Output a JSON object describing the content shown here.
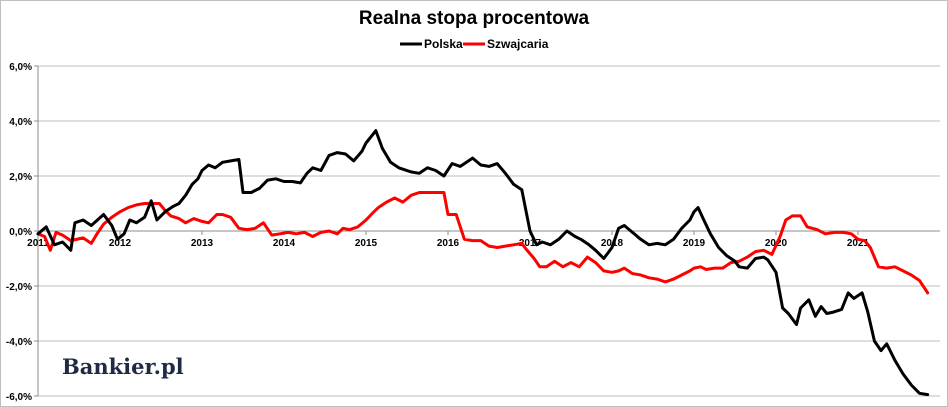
{
  "chart_data": {
    "type": "line",
    "title": "Realna stopa procentowa",
    "xlabel": "",
    "ylabel": "",
    "x_tick_labels": [
      "2011",
      "2012",
      "2013",
      "2014",
      "2015",
      "2016",
      "2017",
      "2018",
      "2019",
      "2020",
      "2021"
    ],
    "y_tick_labels": [
      "6,0%",
      "4,0%",
      "2,0%",
      "0,0%",
      "-2,0%",
      "-4,0%",
      "-6,0%"
    ],
    "y_tick_values": [
      6,
      4,
      2,
      0,
      -2,
      -4,
      -6
    ],
    "ylim": [
      -6,
      6
    ],
    "xlim": [
      2011.0,
      2022.0
    ],
    "grid": "horizontal",
    "legend_position": "top-center",
    "logo_text": "Bankier.pl",
    "series": [
      {
        "name": "Polska",
        "color": "#000000",
        "points": [
          [
            2011.0,
            -0.1
          ],
          [
            2011.1,
            0.15
          ],
          [
            2011.2,
            -0.5
          ],
          [
            2011.3,
            -0.4
          ],
          [
            2011.4,
            -0.7
          ],
          [
            2011.45,
            0.3
          ],
          [
            2011.55,
            0.4
          ],
          [
            2011.65,
            0.2
          ],
          [
            2011.8,
            0.6
          ],
          [
            2011.9,
            0.2
          ],
          [
            2011.97,
            -0.3
          ],
          [
            2012.05,
            -0.1
          ],
          [
            2012.12,
            0.4
          ],
          [
            2012.2,
            0.3
          ],
          [
            2012.3,
            0.5
          ],
          [
            2012.38,
            1.1
          ],
          [
            2012.45,
            0.4
          ],
          [
            2012.55,
            0.7
          ],
          [
            2012.65,
            0.9
          ],
          [
            2012.72,
            1.0
          ],
          [
            2012.8,
            1.3
          ],
          [
            2012.88,
            1.7
          ],
          [
            2012.95,
            1.9
          ],
          [
            2013.0,
            2.2
          ],
          [
            2013.08,
            2.4
          ],
          [
            2013.16,
            2.3
          ],
          [
            2013.25,
            2.5
          ],
          [
            2013.35,
            2.55
          ],
          [
            2013.45,
            2.6
          ],
          [
            2013.5,
            1.4
          ],
          [
            2013.6,
            1.4
          ],
          [
            2013.7,
            1.55
          ],
          [
            2013.8,
            1.85
          ],
          [
            2013.9,
            1.9
          ],
          [
            2014.0,
            1.8
          ],
          [
            2014.1,
            1.8
          ],
          [
            2014.2,
            1.75
          ],
          [
            2014.28,
            2.1
          ],
          [
            2014.35,
            2.3
          ],
          [
            2014.45,
            2.2
          ],
          [
            2014.55,
            2.75
          ],
          [
            2014.65,
            2.85
          ],
          [
            2014.75,
            2.8
          ],
          [
            2014.85,
            2.55
          ],
          [
            2014.95,
            2.9
          ],
          [
            2015.0,
            3.2
          ],
          [
            2015.08,
            3.5
          ],
          [
            2015.12,
            3.65
          ],
          [
            2015.2,
            3.0
          ],
          [
            2015.3,
            2.5
          ],
          [
            2015.4,
            2.3
          ],
          [
            2015.55,
            2.15
          ],
          [
            2015.65,
            2.1
          ],
          [
            2015.75,
            2.3
          ],
          [
            2015.85,
            2.2
          ],
          [
            2015.95,
            2.0
          ],
          [
            2016.05,
            2.45
          ],
          [
            2016.15,
            2.35
          ],
          [
            2016.3,
            2.65
          ],
          [
            2016.4,
            2.4
          ],
          [
            2016.5,
            2.35
          ],
          [
            2016.6,
            2.45
          ],
          [
            2016.7,
            2.1
          ],
          [
            2016.8,
            1.7
          ],
          [
            2016.9,
            1.5
          ],
          [
            2017.0,
            0.0
          ],
          [
            2017.08,
            -0.5
          ],
          [
            2017.15,
            -0.4
          ],
          [
            2017.25,
            -0.5
          ],
          [
            2017.35,
            -0.3
          ],
          [
            2017.45,
            0.0
          ],
          [
            2017.55,
            -0.2
          ],
          [
            2017.62,
            -0.3
          ],
          [
            2017.72,
            -0.5
          ],
          [
            2017.8,
            -0.7
          ],
          [
            2017.9,
            -1.0
          ],
          [
            2018.0,
            -0.6
          ],
          [
            2018.08,
            0.1
          ],
          [
            2018.15,
            0.2
          ],
          [
            2018.25,
            -0.05
          ],
          [
            2018.35,
            -0.3
          ],
          [
            2018.45,
            -0.5
          ],
          [
            2018.55,
            -0.45
          ],
          [
            2018.65,
            -0.5
          ],
          [
            2018.75,
            -0.3
          ],
          [
            2018.85,
            0.1
          ],
          [
            2018.95,
            0.4
          ],
          [
            2019.0,
            0.7
          ],
          [
            2019.05,
            0.85
          ],
          [
            2019.12,
            0.4
          ],
          [
            2019.2,
            -0.1
          ],
          [
            2019.3,
            -0.6
          ],
          [
            2019.4,
            -0.9
          ],
          [
            2019.5,
            -1.1
          ],
          [
            2019.55,
            -1.3
          ],
          [
            2019.65,
            -1.35
          ],
          [
            2019.75,
            -1.0
          ],
          [
            2019.85,
            -0.95
          ],
          [
            2019.9,
            -1.05
          ],
          [
            2020.0,
            -1.5
          ],
          [
            2020.08,
            -2.8
          ],
          [
            2020.15,
            -3.0
          ],
          [
            2020.25,
            -3.4
          ],
          [
            2020.3,
            -2.8
          ],
          [
            2020.4,
            -2.5
          ],
          [
            2020.48,
            -3.1
          ],
          [
            2020.55,
            -2.75
          ],
          [
            2020.62,
            -3.0
          ],
          [
            2020.7,
            -2.95
          ],
          [
            2020.8,
            -2.85
          ],
          [
            2020.88,
            -2.25
          ],
          [
            2020.95,
            -2.45
          ],
          [
            2021.05,
            -2.25
          ],
          [
            2021.12,
            -2.95
          ],
          [
            2021.2,
            -4.0
          ],
          [
            2021.28,
            -4.35
          ],
          [
            2021.35,
            -4.1
          ],
          [
            2021.45,
            -4.7
          ],
          [
            2021.55,
            -5.2
          ],
          [
            2021.65,
            -5.6
          ],
          [
            2021.75,
            -5.9
          ],
          [
            2021.85,
            -5.95
          ]
        ]
      },
      {
        "name": "Szwajcaria",
        "color": "#ff0000",
        "points": [
          [
            2011.0,
            -0.1
          ],
          [
            2011.08,
            -0.2
          ],
          [
            2011.15,
            -0.7
          ],
          [
            2011.22,
            -0.05
          ],
          [
            2011.3,
            -0.15
          ],
          [
            2011.4,
            -0.35
          ],
          [
            2011.55,
            -0.25
          ],
          [
            2011.65,
            -0.45
          ],
          [
            2011.72,
            -0.1
          ],
          [
            2011.8,
            0.25
          ],
          [
            2011.9,
            0.5
          ],
          [
            2012.0,
            0.7
          ],
          [
            2012.1,
            0.85
          ],
          [
            2012.2,
            0.95
          ],
          [
            2012.3,
            1.0
          ],
          [
            2012.4,
            1.0
          ],
          [
            2012.48,
            1.0
          ],
          [
            2012.55,
            0.75
          ],
          [
            2012.62,
            0.55
          ],
          [
            2012.72,
            0.45
          ],
          [
            2012.8,
            0.3
          ],
          [
            2012.9,
            0.45
          ],
          [
            2013.0,
            0.35
          ],
          [
            2013.08,
            0.3
          ],
          [
            2013.18,
            0.6
          ],
          [
            2013.25,
            0.6
          ],
          [
            2013.35,
            0.5
          ],
          [
            2013.45,
            0.1
          ],
          [
            2013.55,
            0.05
          ],
          [
            2013.65,
            0.1
          ],
          [
            2013.75,
            0.3
          ],
          [
            2013.85,
            -0.15
          ],
          [
            2013.95,
            -0.1
          ],
          [
            2014.05,
            -0.05
          ],
          [
            2014.15,
            -0.1
          ],
          [
            2014.25,
            -0.05
          ],
          [
            2014.35,
            -0.2
          ],
          [
            2014.45,
            -0.05
          ],
          [
            2014.55,
            0.0
          ],
          [
            2014.65,
            -0.1
          ],
          [
            2014.72,
            0.1
          ],
          [
            2014.8,
            0.05
          ],
          [
            2014.9,
            0.15
          ],
          [
            2015.0,
            0.4
          ],
          [
            2015.08,
            0.65
          ],
          [
            2015.15,
            0.85
          ],
          [
            2015.25,
            1.05
          ],
          [
            2015.35,
            1.2
          ],
          [
            2015.45,
            1.05
          ],
          [
            2015.55,
            1.3
          ],
          [
            2015.65,
            1.4
          ],
          [
            2015.75,
            1.4
          ],
          [
            2015.85,
            1.4
          ],
          [
            2015.95,
            1.4
          ],
          [
            2016.0,
            0.6
          ],
          [
            2016.1,
            0.6
          ],
          [
            2016.2,
            -0.3
          ],
          [
            2016.3,
            -0.35
          ],
          [
            2016.4,
            -0.35
          ],
          [
            2016.5,
            -0.55
          ],
          [
            2016.6,
            -0.6
          ],
          [
            2016.7,
            -0.55
          ],
          [
            2016.8,
            -0.5
          ],
          [
            2016.9,
            -0.45
          ],
          [
            2016.95,
            -0.65
          ],
          [
            2017.05,
            -1.0
          ],
          [
            2017.12,
            -1.3
          ],
          [
            2017.2,
            -1.3
          ],
          [
            2017.3,
            -1.1
          ],
          [
            2017.4,
            -1.3
          ],
          [
            2017.5,
            -1.15
          ],
          [
            2017.6,
            -1.3
          ],
          [
            2017.7,
            -0.95
          ],
          [
            2017.8,
            -1.15
          ],
          [
            2017.9,
            -1.45
          ],
          [
            2018.0,
            -1.5
          ],
          [
            2018.08,
            -1.45
          ],
          [
            2018.15,
            -1.35
          ],
          [
            2018.25,
            -1.55
          ],
          [
            2018.35,
            -1.6
          ],
          [
            2018.45,
            -1.7
          ],
          [
            2018.55,
            -1.75
          ],
          [
            2018.65,
            -1.85
          ],
          [
            2018.75,
            -1.75
          ],
          [
            2018.85,
            -1.6
          ],
          [
            2018.95,
            -1.45
          ],
          [
            2019.0,
            -1.35
          ],
          [
            2019.08,
            -1.3
          ],
          [
            2019.15,
            -1.4
          ],
          [
            2019.25,
            -1.35
          ],
          [
            2019.35,
            -1.35
          ],
          [
            2019.45,
            -1.15
          ],
          [
            2019.55,
            -1.1
          ],
          [
            2019.65,
            -0.95
          ],
          [
            2019.75,
            -0.75
          ],
          [
            2019.85,
            -0.7
          ],
          [
            2019.95,
            -0.85
          ],
          [
            2020.05,
            -0.2
          ],
          [
            2020.12,
            0.4
          ],
          [
            2020.2,
            0.55
          ],
          [
            2020.3,
            0.55
          ],
          [
            2020.38,
            0.15
          ],
          [
            2020.5,
            0.05
          ],
          [
            2020.6,
            -0.1
          ],
          [
            2020.72,
            -0.05
          ],
          [
            2020.82,
            -0.05
          ],
          [
            2020.92,
            -0.1
          ],
          [
            2021.0,
            -0.3
          ],
          [
            2021.08,
            -0.35
          ],
          [
            2021.15,
            -0.6
          ],
          [
            2021.25,
            -1.3
          ],
          [
            2021.35,
            -1.35
          ],
          [
            2021.45,
            -1.3
          ],
          [
            2021.55,
            -1.45
          ],
          [
            2021.65,
            -1.6
          ],
          [
            2021.75,
            -1.8
          ],
          [
            2021.85,
            -2.25
          ]
        ]
      }
    ]
  }
}
